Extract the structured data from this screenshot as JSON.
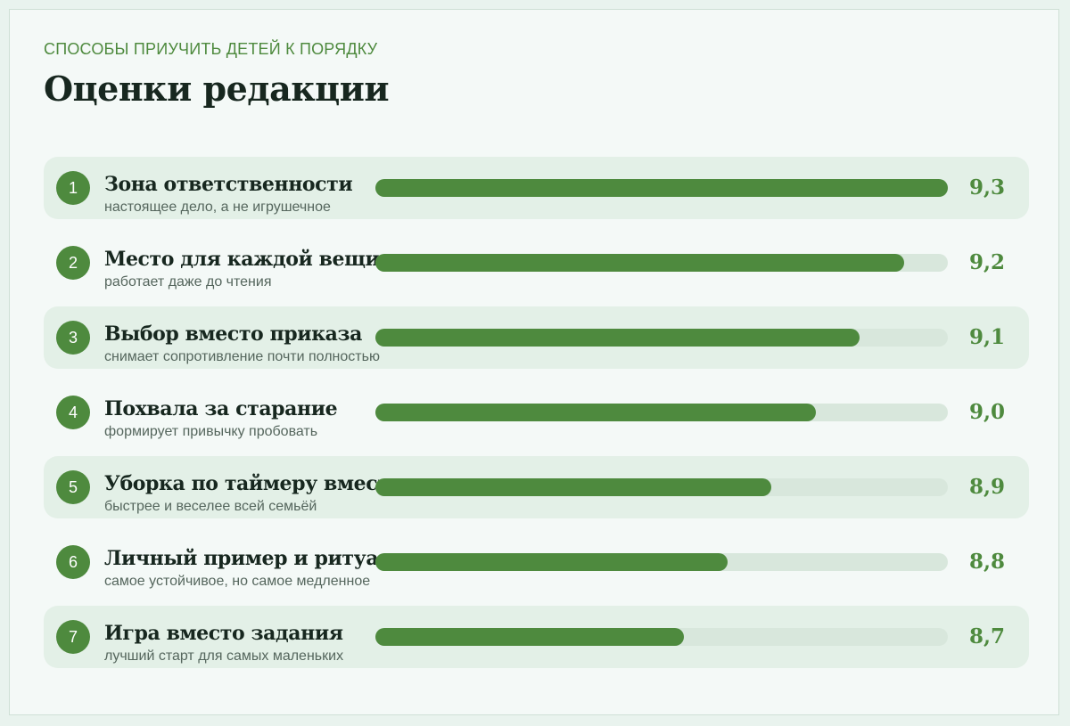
{
  "header": {
    "kicker": "СПОСОБЫ ПРИУЧИТЬ ДЕТЕЙ К ПОРЯДКУ",
    "title": "Оценки редакции"
  },
  "colors": {
    "accent": "#4e8a3e",
    "track": "#d8e7dc",
    "row_shade": "#e3f0e7",
    "title": "#17271f"
  },
  "chart_data": {
    "type": "bar",
    "orientation": "horizontal",
    "xlim": [
      0,
      9.3
    ],
    "items": [
      {
        "rank": "1",
        "name": "Зона ответственности",
        "sub": "настоящее дело, а не игрушечное",
        "value": 9.3,
        "label": "9,3"
      },
      {
        "rank": "2",
        "name": "Место для каждой вещи",
        "sub": "работает даже до чтения",
        "value": 9.2,
        "label": "9,2"
      },
      {
        "rank": "3",
        "name": "Выбор вместо приказа",
        "sub": "снимает сопротивление почти полностью",
        "value": 9.1,
        "label": "9,1"
      },
      {
        "rank": "4",
        "name": "Похвала за старание",
        "sub": "формирует привычку пробовать",
        "value": 9.0,
        "label": "9,0"
      },
      {
        "rank": "5",
        "name": "Уборка по таймеру вместе",
        "sub": "быстрее и веселее всей семьёй",
        "value": 8.9,
        "label": "8,9"
      },
      {
        "rank": "6",
        "name": "Личный пример и ритуал",
        "sub": "самое устойчивое, но самое медленное",
        "value": 8.8,
        "label": "8,8"
      },
      {
        "rank": "7",
        "name": "Игра вместо задания",
        "sub": "лучший старт для самых маленьких",
        "value": 8.7,
        "label": "8,7"
      }
    ]
  }
}
